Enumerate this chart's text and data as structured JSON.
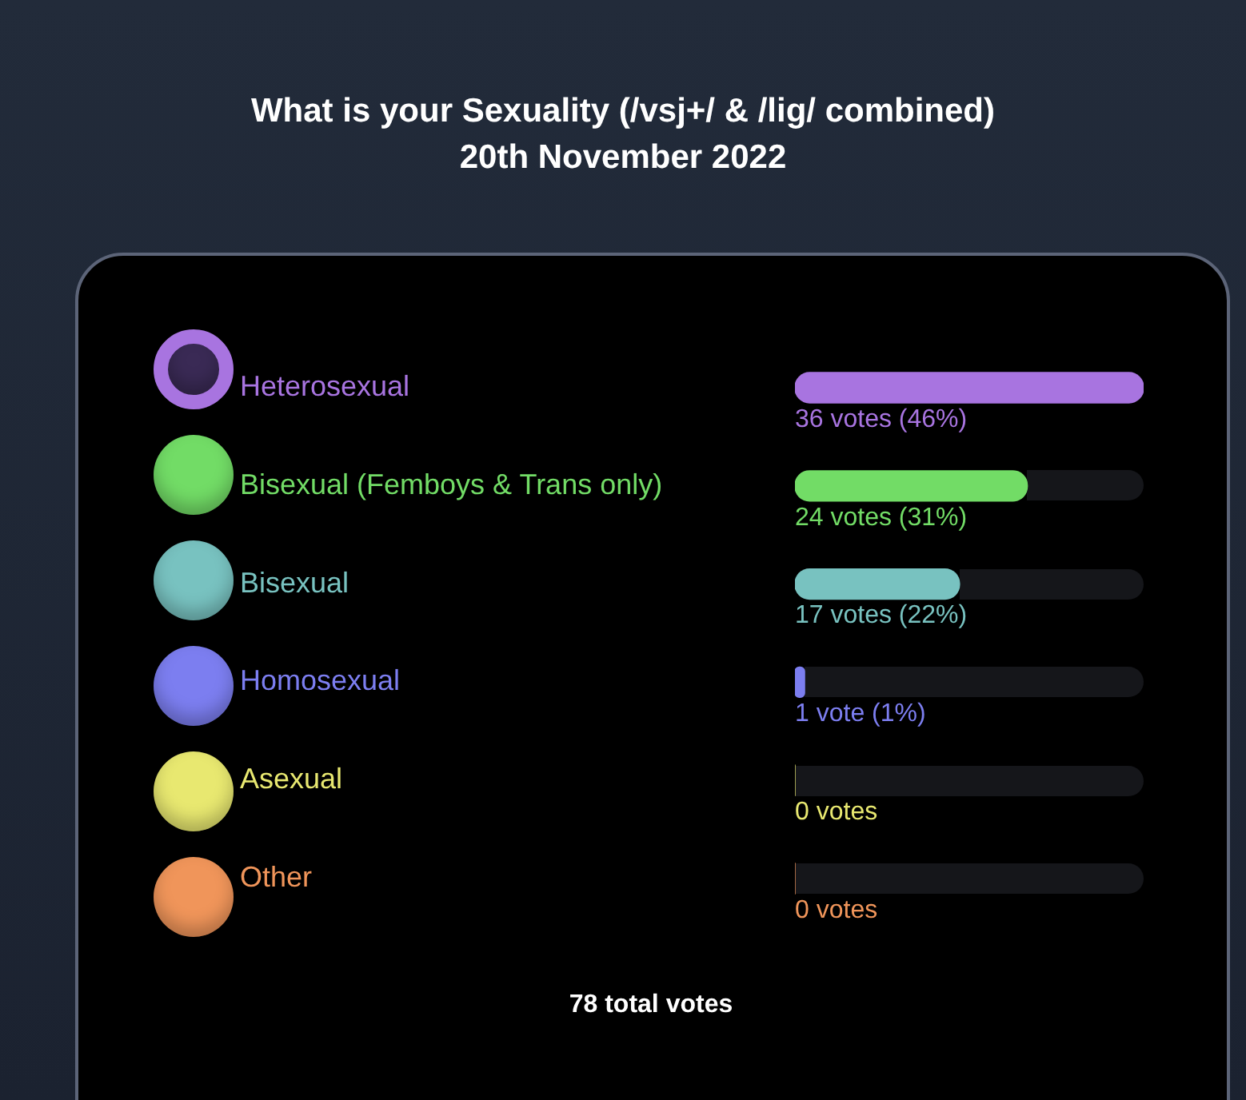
{
  "chart_data": {
    "type": "bar",
    "orientation": "horizontal",
    "title": "What is your Sexuality (/vsj+/ & /lig/ combined)",
    "subtitle": "20th November 2022",
    "categories": [
      "Heterosexual",
      "Bisexual (Femboys & Trans only)",
      "Bisexual",
      "Homosexual",
      "Asexual",
      "Other"
    ],
    "values": [
      36,
      24,
      17,
      1,
      0,
      0
    ],
    "colors": [
      "#a874e0",
      "#72dc66",
      "#78c2c0",
      "#7c7ef0",
      "#e8e870",
      "#f0955a"
    ],
    "value_labels": [
      "36 votes (46%)",
      "24 votes (31%)",
      "17 votes (22%)",
      "1 vote (1%)",
      "0 votes",
      "0 votes"
    ],
    "xlim": [
      0,
      36
    ],
    "tick_labels": "y",
    "annotations": [
      "78 total votes"
    ]
  }
}
